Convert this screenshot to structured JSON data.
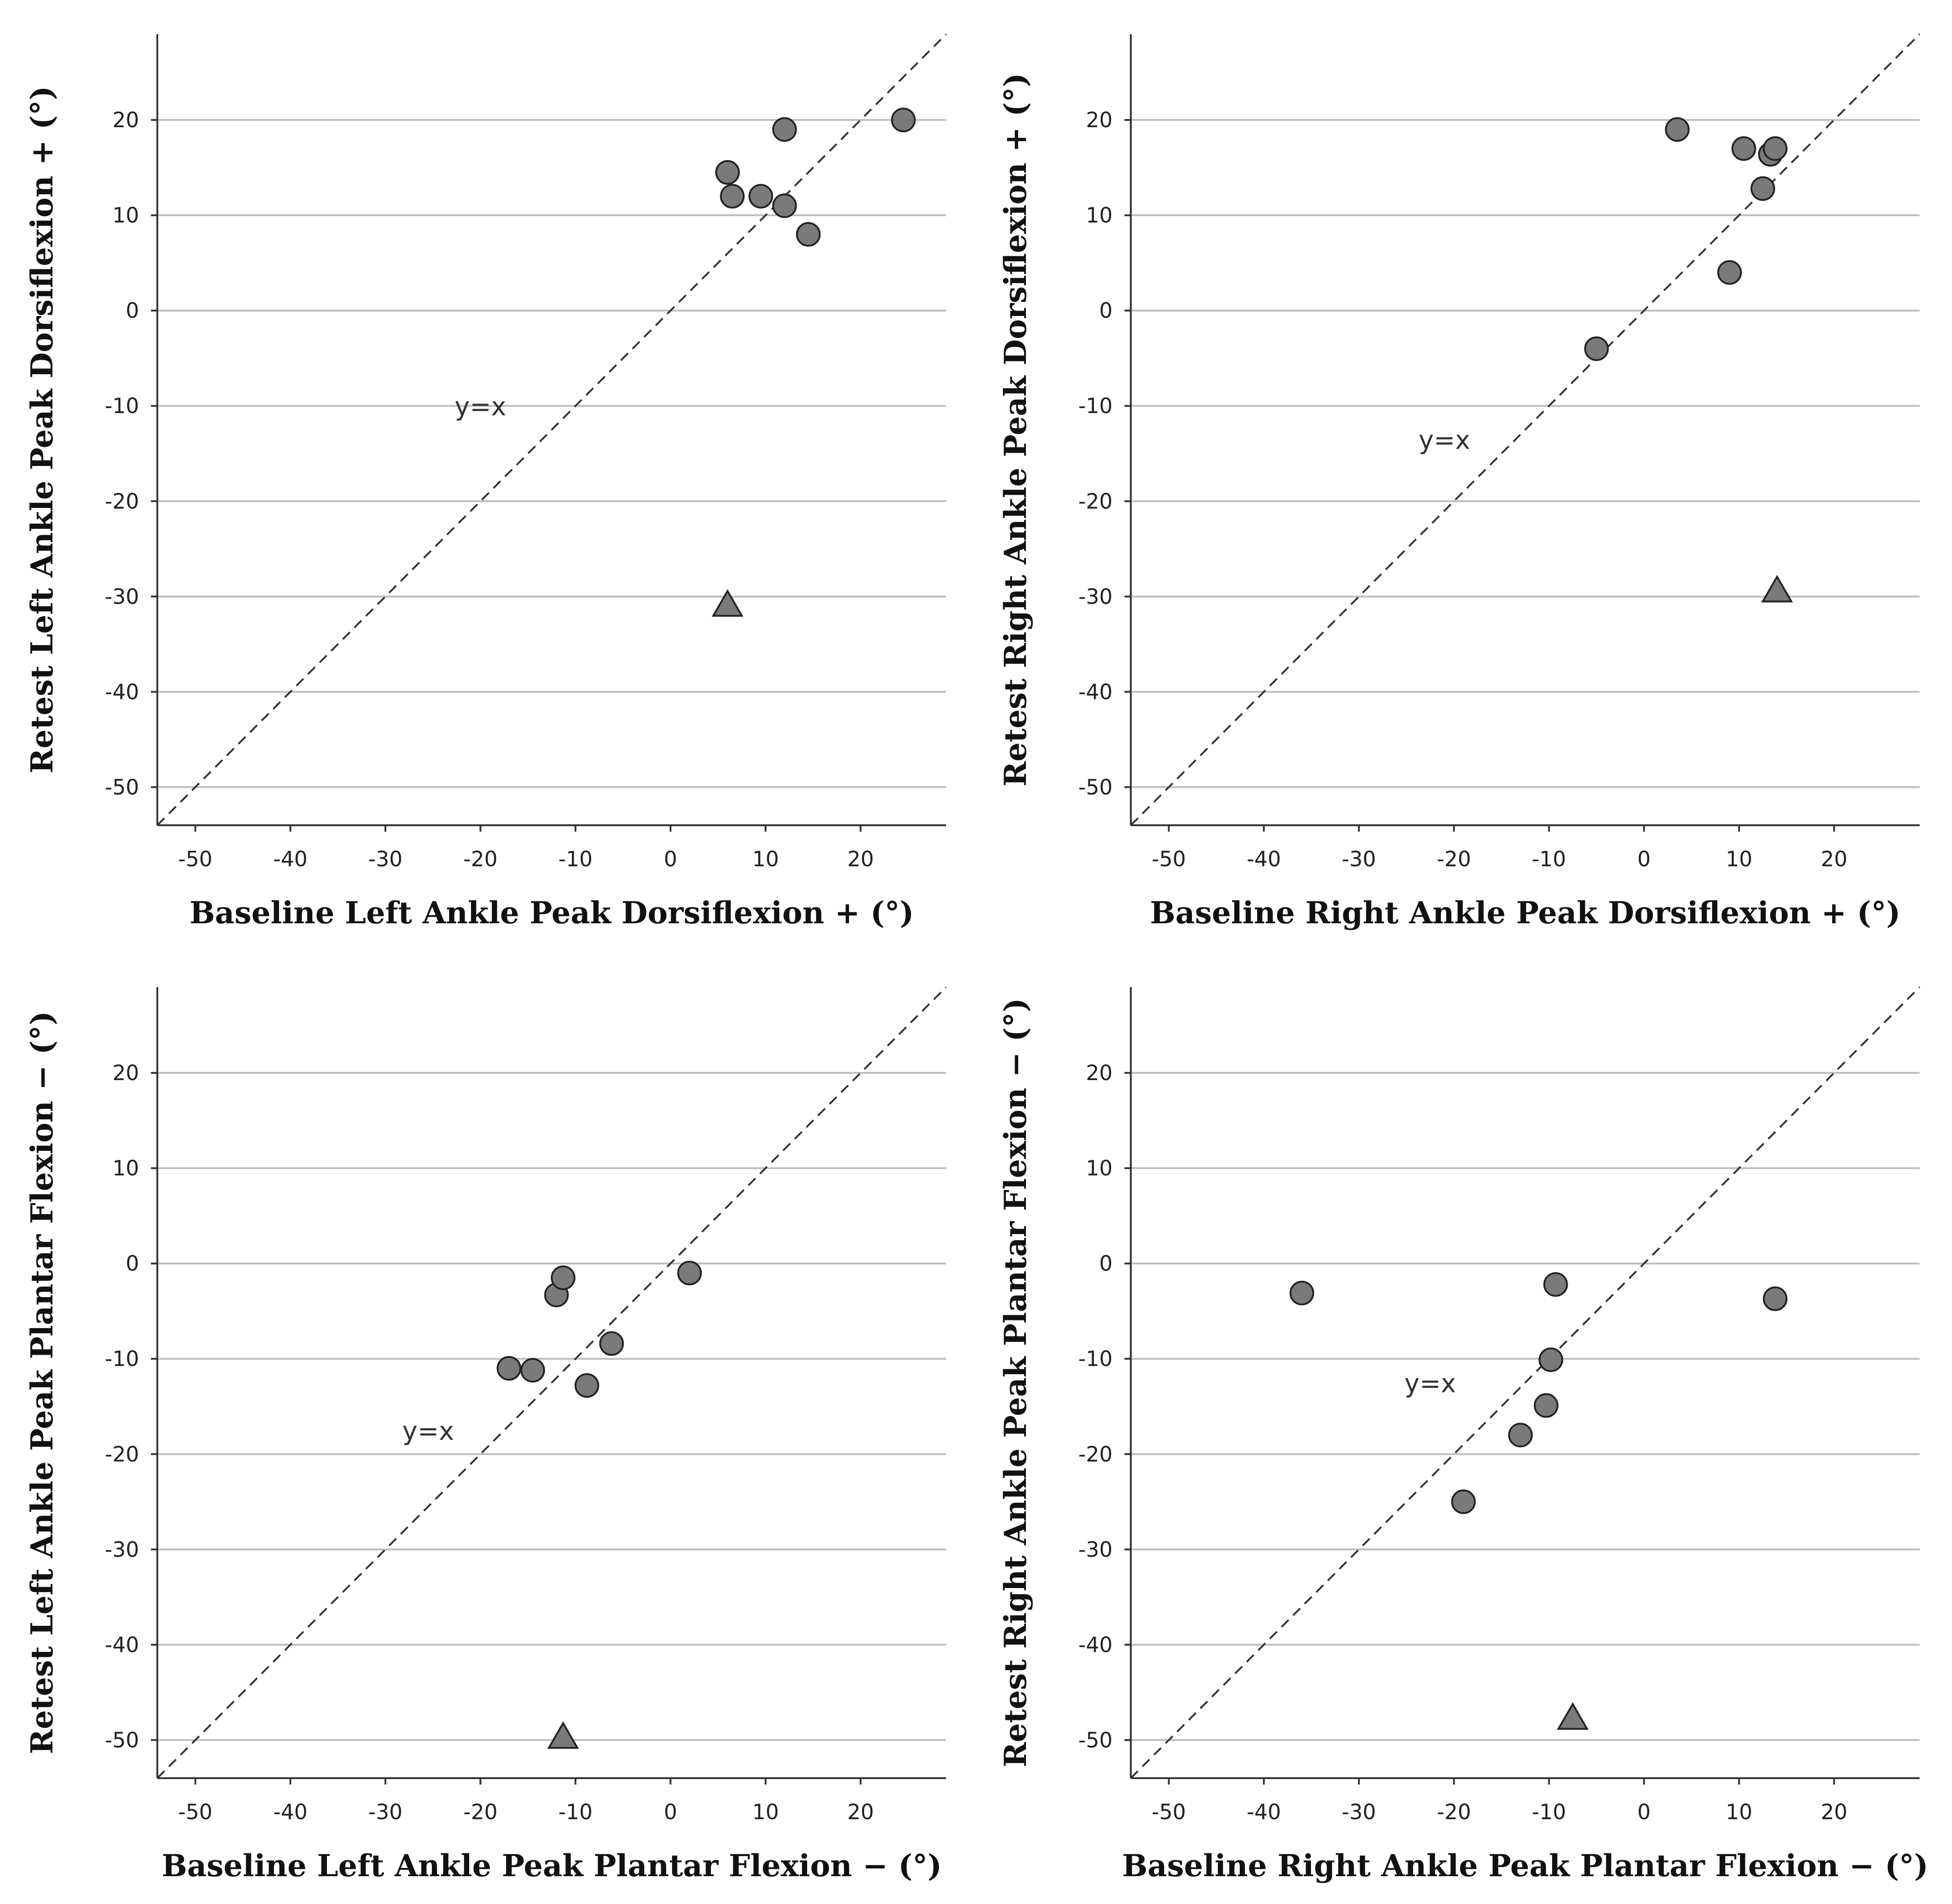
{
  "colors": {
    "marker_fill": "#7a7a7a",
    "marker_edge": "#222222",
    "grid": "#bdbdbd",
    "axis": "#333333",
    "reference_line": "#333333"
  },
  "chart_data": [
    {
      "type": "scatter",
      "panel": "top-left",
      "xlabel": "Baseline Left Ankle Peak Dorsiflexion + (°)",
      "ylabel": "Retest Left Ankle Peak Dorsiflexion + (°)",
      "xlim": [
        -54,
        29
      ],
      "ylim": [
        -54,
        29
      ],
      "xticks": [
        -50,
        -40,
        -30,
        -20,
        -10,
        0,
        10,
        20
      ],
      "yticks": [
        -50,
        -40,
        -30,
        -20,
        -10,
        0,
        10,
        20
      ],
      "grid": "horizontal",
      "reference_line": {
        "label": "y=x",
        "label_at": [
          -20,
          -11
        ]
      },
      "series": [
        {
          "name": "circles",
          "marker": "circle",
          "points": [
            [
              6,
              14.5
            ],
            [
              6.5,
              12
            ],
            [
              9.5,
              12
            ],
            [
              12,
              19
            ],
            [
              12,
              11
            ],
            [
              14.5,
              8
            ],
            [
              24.5,
              20
            ]
          ]
        },
        {
          "name": "triangles",
          "marker": "triangle",
          "points": [
            [
              6,
              -31
            ]
          ]
        }
      ]
    },
    {
      "type": "scatter",
      "panel": "top-right",
      "xlabel": "Baseline Right Ankle Peak Dorsiflexion + (°)",
      "ylabel": "Retest Right Ankle Peak Dorsiflexion + (°)",
      "xlim": [
        -54,
        29
      ],
      "ylim": [
        -54,
        29
      ],
      "xticks": [
        -50,
        -40,
        -30,
        -20,
        -10,
        0,
        10,
        20
      ],
      "yticks": [
        -50,
        -40,
        -30,
        -20,
        -10,
        0,
        10,
        20
      ],
      "grid": "horizontal",
      "reference_line": {
        "label": "y=x",
        "label_at": [
          -21,
          -14.5
        ]
      },
      "series": [
        {
          "name": "circles",
          "marker": "circle",
          "points": [
            [
              -5,
              -4
            ],
            [
              3.5,
              19
            ],
            [
              9,
              4
            ],
            [
              10.5,
              17
            ],
            [
              12.5,
              12.8
            ],
            [
              13.3,
              16.4
            ],
            [
              13.8,
              17
            ]
          ]
        },
        {
          "name": "triangles",
          "marker": "triangle",
          "points": [
            [
              14,
              -29.5
            ]
          ]
        }
      ]
    },
    {
      "type": "scatter",
      "panel": "bottom-left",
      "xlabel": "Baseline Left Ankle Peak Plantar Flexion − (°)",
      "ylabel": "Retest Left Ankle Peak Plantar Flexion − (°)",
      "xlim": [
        -54,
        29
      ],
      "ylim": [
        -54,
        29
      ],
      "xticks": [
        -50,
        -40,
        -30,
        -20,
        -10,
        0,
        10,
        20
      ],
      "yticks": [
        -50,
        -40,
        -30,
        -20,
        -10,
        0,
        10,
        20
      ],
      "grid": "horizontal",
      "reference_line": {
        "label": "y=x",
        "label_at": [
          -25.5,
          -18.5
        ]
      },
      "series": [
        {
          "name": "circles",
          "marker": "circle",
          "points": [
            [
              -17,
              -11
            ],
            [
              -14.5,
              -11.2
            ],
            [
              -12,
              -3.3
            ],
            [
              -11.3,
              -1.5
            ],
            [
              -8.8,
              -12.8
            ],
            [
              -6.2,
              -8.4
            ],
            [
              2,
              -1
            ]
          ]
        },
        {
          "name": "triangles",
          "marker": "triangle",
          "points": [
            [
              -11.3,
              -49.8
            ]
          ]
        }
      ]
    },
    {
      "type": "scatter",
      "panel": "bottom-right",
      "xlabel": "Baseline Right Ankle Peak Plantar Flexion − (°)",
      "ylabel": "Retest Right Ankle Peak Plantar Flexion − (°)",
      "xlim": [
        -54,
        29
      ],
      "ylim": [
        -54,
        29
      ],
      "xticks": [
        -50,
        -40,
        -30,
        -20,
        -10,
        0,
        10,
        20
      ],
      "yticks": [
        -50,
        -40,
        -30,
        -20,
        -10,
        0,
        10,
        20
      ],
      "grid": "horizontal",
      "reference_line": {
        "label": "y=x",
        "label_at": [
          -22.5,
          -13.5
        ]
      },
      "series": [
        {
          "name": "circles",
          "marker": "circle",
          "points": [
            [
              -36,
              -3.1
            ],
            [
              -19,
              -25
            ],
            [
              -13,
              -18
            ],
            [
              -10.3,
              -14.9
            ],
            [
              -9.8,
              -10.1
            ],
            [
              -9.3,
              -2.2
            ],
            [
              13.8,
              -3.7
            ]
          ]
        },
        {
          "name": "triangles",
          "marker": "triangle",
          "points": [
            [
              -7.5,
              -47.8
            ]
          ]
        }
      ]
    }
  ]
}
